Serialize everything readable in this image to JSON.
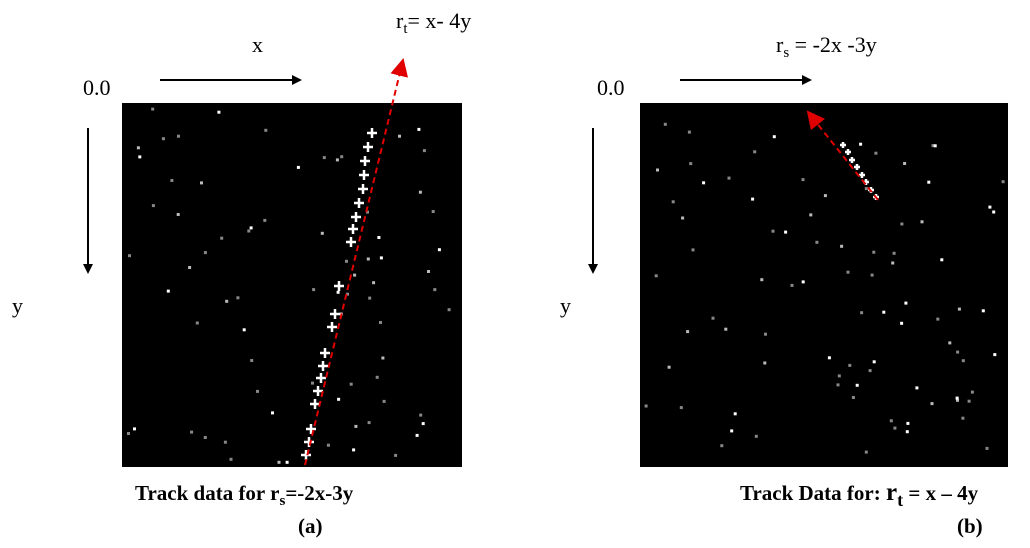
{
  "panels": [
    {
      "axis_x": "x",
      "origin": "0.0",
      "axis_y": "y",
      "track_label": {
        "r": "r",
        "sub": "t",
        "eq": "= x- 4y"
      },
      "caption": {
        "text": "Track data for ",
        "r": "r",
        "sub": "s",
        "eq": "=-2x-3y"
      },
      "tag": "(a)"
    },
    {
      "origin": "0.0",
      "axis_y": "y",
      "track_label": {
        "r": "r",
        "sub": "s",
        "eq": " = -2x -3y"
      },
      "caption": {
        "text": "Track Data for: ",
        "r": "r",
        "sub": "t",
        "eq": " = x – 4y"
      },
      "tag": "(b)"
    }
  ]
}
